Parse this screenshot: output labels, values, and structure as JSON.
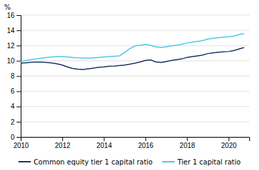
{
  "chart_data": {
    "type": "line",
    "ylabel": "%",
    "x": [
      2010.0,
      2010.25,
      2010.5,
      2010.75,
      2011.0,
      2011.25,
      2011.5,
      2011.75,
      2012.0,
      2012.25,
      2012.5,
      2012.75,
      2013.0,
      2013.25,
      2013.5,
      2013.75,
      2014.0,
      2014.25,
      2014.5,
      2014.75,
      2015.0,
      2015.25,
      2015.5,
      2015.75,
      2016.0,
      2016.25,
      2016.5,
      2016.75,
      2017.0,
      2017.25,
      2017.5,
      2017.75,
      2018.0,
      2018.25,
      2018.5,
      2018.75,
      2019.0,
      2019.25,
      2019.5,
      2019.75,
      2020.0,
      2020.25,
      2020.5,
      2020.75
    ],
    "series": [
      {
        "name": "Common equity tier 1 capital ratio",
        "color": "#1a3263",
        "values": [
          9.7,
          9.75,
          9.8,
          9.82,
          9.82,
          9.78,
          9.72,
          9.6,
          9.45,
          9.2,
          9.0,
          8.9,
          8.85,
          8.95,
          9.05,
          9.15,
          9.2,
          9.28,
          9.32,
          9.38,
          9.45,
          9.55,
          9.7,
          9.85,
          10.05,
          10.12,
          9.85,
          9.78,
          9.9,
          10.05,
          10.15,
          10.25,
          10.45,
          10.55,
          10.65,
          10.75,
          10.95,
          11.05,
          11.12,
          11.18,
          11.22,
          11.35,
          11.55,
          11.75
        ]
      },
      {
        "name": "Tier 1 capital ratio",
        "color": "#4dc8e8",
        "values": [
          9.9,
          10.05,
          10.15,
          10.25,
          10.35,
          10.45,
          10.5,
          10.55,
          10.55,
          10.5,
          10.45,
          10.4,
          10.38,
          10.35,
          10.4,
          10.45,
          10.5,
          10.55,
          10.6,
          10.65,
          11.1,
          11.6,
          11.95,
          12.05,
          12.15,
          12.05,
          11.85,
          11.75,
          11.85,
          11.95,
          12.05,
          12.15,
          12.35,
          12.45,
          12.55,
          12.65,
          12.85,
          12.95,
          13.05,
          13.1,
          13.15,
          13.25,
          13.45,
          13.55
        ]
      }
    ],
    "xlim": [
      2010,
      2021
    ],
    "xticks": [
      2010,
      2012,
      2014,
      2016,
      2018,
      2020
    ],
    "ylim": [
      0,
      16
    ],
    "yticks": [
      0,
      2,
      4,
      6,
      8,
      10,
      12,
      14,
      16
    ],
    "grid": true,
    "legend": "bottom"
  }
}
